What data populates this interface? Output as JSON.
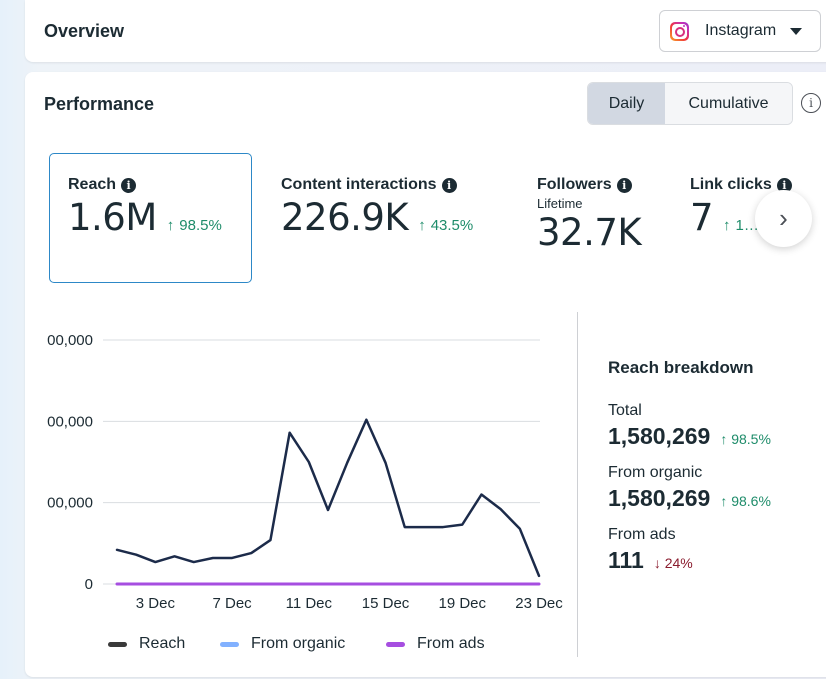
{
  "overview": {
    "title": "Overview",
    "platform_select": {
      "selected": "Instagram",
      "icon": "instagram-icon"
    }
  },
  "performance": {
    "title": "Performance",
    "toggle": {
      "options": [
        "Daily",
        "Cumulative"
      ],
      "selected": "Daily"
    },
    "info_icon": "info-icon",
    "metrics": [
      {
        "label": "Reach",
        "value": "1.6M",
        "delta": "98.5%",
        "direction": "up",
        "selected": true
      },
      {
        "label": "Content interactions",
        "value": "226.9K",
        "delta": "43.5%",
        "direction": "up"
      },
      {
        "label": "Followers",
        "sublabel": "Lifetime",
        "value": "32.7K"
      },
      {
        "label": "Link clicks",
        "value": "7",
        "delta": "1…",
        "direction": "up"
      }
    ],
    "next_icon": "chevron-right-icon",
    "breakdown": {
      "title": "Reach breakdown",
      "items": [
        {
          "label": "Total",
          "value": "1,580,269",
          "delta": "98.5%",
          "direction": "up"
        },
        {
          "label": "From organic",
          "value": "1,580,269",
          "delta": "98.6%",
          "direction": "up"
        },
        {
          "label": "From ads",
          "value": "111",
          "delta": "24%",
          "direction": "down"
        }
      ]
    }
  },
  "chart_data": {
    "type": "line",
    "title": "",
    "xlabel": "",
    "ylabel": "",
    "x": [
      "1 Dec",
      "2 Dec",
      "3 Dec",
      "4 Dec",
      "5 Dec",
      "6 Dec",
      "7 Dec",
      "8 Dec",
      "9 Dec",
      "10 Dec",
      "11 Dec",
      "12 Dec",
      "13 Dec",
      "14 Dec",
      "15 Dec",
      "16 Dec",
      "17 Dec",
      "18 Dec",
      "19 Dec",
      "20 Dec",
      "21 Dec",
      "22 Dec",
      "23 Dec"
    ],
    "x_tick_labels": [
      "3 Dec",
      "7 Dec",
      "11 Dec",
      "15 Dec",
      "19 Dec",
      "23 Dec"
    ],
    "y_tick_labels": [
      "0",
      "00,000",
      "00,000",
      "00,000"
    ],
    "y_ticks": [
      0,
      100000,
      200000,
      300000
    ],
    "ylim": [
      0,
      300000
    ],
    "grid": true,
    "legend_position": "bottom",
    "series": [
      {
        "name": "Reach",
        "color": "#1c2b4a",
        "values": [
          42000,
          36000,
          27000,
          34000,
          27000,
          32000,
          32000,
          38000,
          54000,
          186000,
          150000,
          91000,
          149000,
          202000,
          149000,
          70000,
          70000,
          70000,
          73000,
          110000,
          92000,
          68000,
          10000
        ]
      },
      {
        "name": "From organic",
        "color": "#82b1ff",
        "values": [
          42000,
          36000,
          27000,
          34000,
          27000,
          32000,
          32000,
          38000,
          54000,
          186000,
          150000,
          91000,
          149000,
          202000,
          149000,
          70000,
          70000,
          70000,
          73000,
          110000,
          92000,
          68000,
          10000
        ]
      },
      {
        "name": "From ads",
        "color": "#a64ee0",
        "values": [
          5,
          5,
          5,
          5,
          5,
          5,
          5,
          5,
          5,
          5,
          5,
          5,
          5,
          5,
          5,
          5,
          5,
          5,
          5,
          5,
          5,
          5,
          5
        ]
      }
    ]
  }
}
